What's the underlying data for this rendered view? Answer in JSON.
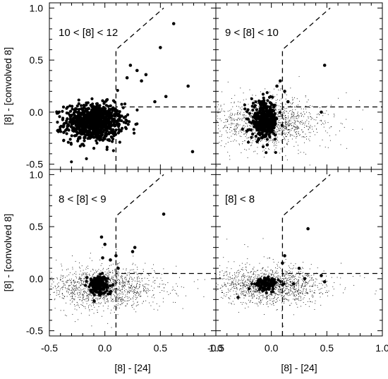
{
  "chart_data": [
    {
      "type": "scatter",
      "panel_label": "10 < [8] < 12",
      "xlabel": "",
      "ylabel": "[8] - [convolved 8]",
      "xlim": [
        -0.5,
        1.0
      ],
      "ylim": [
        -0.55,
        1.05
      ],
      "xticks": [],
      "yticks": [
        "-0.5",
        "0.0",
        "0.5",
        "1.0"
      ],
      "selection_boundary": {
        "x": [
          0.1,
          0.1,
          1.0
        ],
        "y": [
          -0.55,
          0.05,
          0.05
        ],
        "diagonal": {
          "x": [
            0.1,
            0.1,
            0.53
          ],
          "y": [
            0.05,
            0.6,
            1.0
          ]
        }
      },
      "highlighted_cloud": {
        "x_center": -0.1,
        "y_center": -0.1,
        "x_spread": 0.13,
        "y_spread": 0.09,
        "count": 900
      },
      "outliers": [
        {
          "x": 0.62,
          "y": 0.85
        },
        {
          "x": 0.5,
          "y": 0.62
        },
        {
          "x": 0.37,
          "y": 0.36
        },
        {
          "x": 0.23,
          "y": 0.45
        },
        {
          "x": 0.29,
          "y": 0.4
        },
        {
          "x": 0.75,
          "y": 0.25
        },
        {
          "x": 0.79,
          "y": -0.38
        },
        {
          "x": 0.55,
          "y": 0.15
        },
        {
          "x": 0.45,
          "y": 0.1
        },
        {
          "x": 0.33,
          "y": 0.3
        },
        {
          "x": 0.2,
          "y": 0.33
        }
      ]
    },
    {
      "type": "scatter",
      "panel_label": "9 < [8] < 10",
      "xlabel": "",
      "ylabel": "",
      "xlim": [
        -0.5,
        1.0
      ],
      "ylim": [
        -0.55,
        1.05
      ],
      "xticks": [],
      "yticks": [],
      "selection_boundary": {
        "x": [
          0.1,
          0.1,
          1.0
        ],
        "y": [
          -0.55,
          0.05,
          0.05
        ],
        "diagonal": {
          "x": [
            0.1,
            0.1,
            0.53
          ],
          "y": [
            0.05,
            0.6,
            1.0
          ]
        }
      },
      "background_cloud": {
        "x_center": -0.02,
        "y_center": -0.1,
        "x_spread": 0.22,
        "y_spread": 0.1,
        "count": 1300
      },
      "highlighted_cloud": {
        "x_center": -0.06,
        "y_center": -0.08,
        "x_spread": 0.06,
        "y_spread": 0.09,
        "count": 380
      },
      "outliers": [
        {
          "x": 0.48,
          "y": 0.45
        },
        {
          "x": 0.08,
          "y": 0.3
        },
        {
          "x": 0.05,
          "y": 0.25
        },
        {
          "x": 0.12,
          "y": 0.2
        },
        {
          "x": 0.15,
          "y": 0.1
        },
        {
          "x": 0.45,
          "y": 0.0
        }
      ]
    },
    {
      "type": "scatter",
      "panel_label": "8 < [8] < 9",
      "xlabel": "[8] - [24]",
      "ylabel": "[8] - [convolved 8]",
      "xlim": [
        -0.5,
        1.0
      ],
      "ylim": [
        -0.55,
        1.05
      ],
      "xticks": [
        "-0.5",
        "0.0",
        "0.5",
        "1.0"
      ],
      "yticks": [
        "-0.5",
        "0.0",
        "0.5",
        "1.0"
      ],
      "selection_boundary": {
        "x": [
          0.1,
          0.1,
          1.0
        ],
        "y": [
          -0.55,
          0.05,
          0.05
        ],
        "diagonal": {
          "x": [
            0.1,
            0.1,
            0.53
          ],
          "y": [
            0.05,
            0.6,
            1.0
          ]
        }
      },
      "background_cloud": {
        "x_center": -0.02,
        "y_center": -0.08,
        "x_spread": 0.22,
        "y_spread": 0.09,
        "count": 1400
      },
      "highlighted_cloud": {
        "x_center": -0.06,
        "y_center": -0.06,
        "x_spread": 0.05,
        "y_spread": 0.05,
        "count": 160
      },
      "outliers": [
        {
          "x": 0.53,
          "y": 0.62
        },
        {
          "x": -0.03,
          "y": 0.4
        },
        {
          "x": 0.27,
          "y": 0.3
        },
        {
          "x": 0.25,
          "y": 0.26
        },
        {
          "x": 0.05,
          "y": 0.18
        },
        {
          "x": 0.1,
          "y": 0.22
        },
        {
          "x": 0.12,
          "y": 0.1
        },
        {
          "x": 0.0,
          "y": 0.33
        },
        {
          "x": -0.02,
          "y": 0.2
        }
      ]
    },
    {
      "type": "scatter",
      "panel_label": "[8] < 8",
      "xlabel": "[8] - [24]",
      "ylabel": "",
      "xlim": [
        -0.5,
        1.0
      ],
      "ylim": [
        -0.55,
        1.05
      ],
      "xticks": [
        "-0.5",
        "0.0",
        "0.5",
        "1.0"
      ],
      "yticks": [],
      "selection_boundary": {
        "x": [
          0.1,
          0.1,
          1.0
        ],
        "y": [
          -0.55,
          0.05,
          0.05
        ],
        "diagonal": {
          "x": [
            0.1,
            0.1,
            0.53
          ],
          "y": [
            0.05,
            0.6,
            1.0
          ]
        }
      },
      "background_cloud": {
        "x_center": -0.02,
        "y_center": -0.06,
        "x_spread": 0.22,
        "y_spread": 0.08,
        "count": 1400
      },
      "highlighted_cloud": {
        "x_center": -0.04,
        "y_center": -0.05,
        "x_spread": 0.05,
        "y_spread": 0.03,
        "count": 110
      },
      "outliers": [
        {
          "x": 0.33,
          "y": 0.48
        },
        {
          "x": 0.12,
          "y": 0.22
        },
        {
          "x": 0.1,
          "y": 0.15
        },
        {
          "x": 0.25,
          "y": 0.1
        },
        {
          "x": 0.3,
          "y": 0.0
        },
        {
          "x": 0.45,
          "y": 0.03
        },
        {
          "x": 0.48,
          "y": -0.03
        },
        {
          "x": -0.3,
          "y": -0.18
        },
        {
          "x": 0.2,
          "y": -0.05
        }
      ]
    }
  ]
}
